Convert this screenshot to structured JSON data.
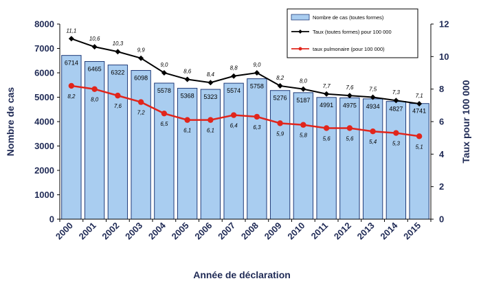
{
  "chart_data": {
    "type": "bar",
    "categories": [
      "2000",
      "2001",
      "2002",
      "2003",
      "2004",
      "2005",
      "2006",
      "2007",
      "2008",
      "2009",
      "2010",
      "2011",
      "2012",
      "2013",
      "2014",
      "2015"
    ],
    "series": [
      {
        "name": "Nombre de cas (toutes formes)",
        "kind": "bar",
        "axis": "left",
        "values": [
          6714,
          6465,
          6322,
          6098,
          5578,
          5368,
          5323,
          5574,
          5758,
          5276,
          5187,
          4991,
          4975,
          4934,
          4827,
          4741
        ]
      },
      {
        "name": "Taux (toutes formes) pour 100 000",
        "kind": "line",
        "axis": "right",
        "values": [
          11.1,
          10.6,
          10.3,
          9.9,
          9.0,
          8.6,
          8.4,
          8.8,
          9.0,
          8.2,
          8.0,
          7.7,
          7.6,
          7.5,
          7.3,
          7.1
        ],
        "labels": [
          "11,1",
          "10,6",
          "10,3",
          "9,9",
          "9,0",
          "8,6",
          "8,4",
          "8,8",
          "9,0",
          "8,2",
          "8,0",
          "7,7",
          "7,6",
          "7,5",
          "7,3",
          "7,1"
        ]
      },
      {
        "name": "taux pulmonaire (pour 100 000)",
        "kind": "line",
        "axis": "right",
        "values": [
          8.2,
          8.0,
          7.6,
          7.2,
          6.5,
          6.1,
          6.1,
          6.4,
          6.3,
          5.9,
          5.8,
          5.6,
          5.6,
          5.4,
          5.3,
          5.1
        ],
        "labels": [
          "8,2",
          "8,0",
          "7,6",
          "7,2",
          "6,5",
          "6,1",
          "6,1",
          "6,4",
          "6,3",
          "5,9",
          "5,8",
          "5,6",
          "5,6",
          "5,4",
          "5,3",
          "5,1"
        ]
      }
    ],
    "xlabel": "Année de déclaration",
    "ylabel": "Nombre de cas",
    "ylabel_right": "Taux pour 100 000",
    "ylim": [
      0,
      8000
    ],
    "ylim_right": [
      0,
      12
    ],
    "yticks": [
      "0",
      "1000",
      "2000",
      "3000",
      "4000",
      "5000",
      "6000",
      "7000",
      "8000"
    ],
    "yticks_right": [
      "0",
      "2",
      "4",
      "6",
      "8",
      "10",
      "12"
    ],
    "legend": [
      "Nombre de cas (toutes formes)",
      "Taux (toutes formes) pour 100 000",
      "taux pulmonaire (pour 100 000)"
    ],
    "legend_position": "top-right",
    "colors": {
      "bar_fill": "#a9cdf0",
      "bar_stroke": "#1e3a78",
      "total_line": "#000000",
      "pulmonary_line": "#e1251b",
      "axis_text": "#1f2a55"
    }
  }
}
